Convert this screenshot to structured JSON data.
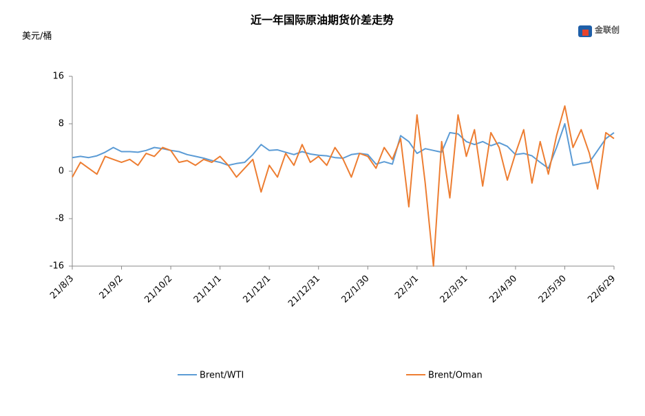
{
  "chart_data": {
    "type": "line",
    "title": "近一年国际原油期货价差走势",
    "y_label": "美元/桶",
    "logo": "金联创",
    "categories": [
      "21/8/3",
      null,
      null,
      null,
      null,
      null,
      "21/9/2",
      null,
      null,
      null,
      null,
      null,
      "21/10/2",
      null,
      null,
      null,
      null,
      null,
      "21/11/1",
      null,
      null,
      null,
      null,
      null,
      "21/12/1",
      null,
      null,
      null,
      null,
      null,
      "21/12/31",
      null,
      null,
      null,
      null,
      null,
      "22/1/30",
      null,
      null,
      null,
      null,
      null,
      "22/3/1",
      null,
      null,
      null,
      null,
      null,
      "22/3/31",
      null,
      null,
      null,
      null,
      null,
      "22/4/30",
      null,
      null,
      null,
      null,
      null,
      "22/5/30",
      null,
      null,
      null,
      null,
      null,
      "22/6/29"
    ],
    "series": [
      {
        "name": "Brent/WTI",
        "color": "#5b9bd5",
        "values": [
          2.3,
          2.5,
          2.3,
          2.6,
          3.2,
          4,
          3.3,
          3.3,
          3.2,
          3.5,
          4,
          3.8,
          3.5,
          3.3,
          2.8,
          2.5,
          2.2,
          1.8,
          1.5,
          1,
          1.3,
          1.5,
          2.8,
          4.5,
          3.5,
          3.6,
          3.2,
          2.8,
          3.3,
          2.9,
          2.7,
          2.6,
          2.3,
          2.2,
          2.8,
          3,
          2.8,
          1.2,
          1.6,
          1.2,
          6,
          5,
          3,
          3.8,
          3.5,
          3.2,
          6.5,
          6.3,
          5,
          4.5,
          5,
          4.3,
          4.8,
          4.2,
          2.8,
          3,
          2.6,
          1.5,
          0.5,
          4,
          8,
          1,
          1.3,
          1.5,
          3.5,
          5.5,
          6.5
        ]
      },
      {
        "name": "Brent/Oman",
        "color": "#ed7d31",
        "values": [
          -1,
          1.5,
          0.5,
          -0.5,
          2.5,
          2,
          1.5,
          2,
          1,
          3,
          2.5,
          4,
          3.5,
          1.5,
          1.8,
          1,
          2,
          1.5,
          2.5,
          1,
          -1,
          0.5,
          2,
          -3.5,
          1,
          -1,
          3,
          1,
          4.5,
          1.5,
          2.5,
          1,
          4,
          2,
          -1,
          3,
          2.5,
          0.5,
          4,
          2,
          5.5,
          -6,
          9.5,
          -2,
          -16,
          5,
          -4.5,
          9.5,
          2.5,
          7,
          -2.5,
          6.5,
          4,
          -1.5,
          3,
          7,
          -2,
          5,
          -0.5,
          6,
          11,
          4,
          7,
          3,
          -3,
          6.5,
          5.5
        ]
      }
    ],
    "ylim": [
      -16,
      16
    ],
    "yticks": [
      -16,
      -8,
      0,
      8,
      16
    ],
    "grid": false,
    "legend": "bottom"
  }
}
